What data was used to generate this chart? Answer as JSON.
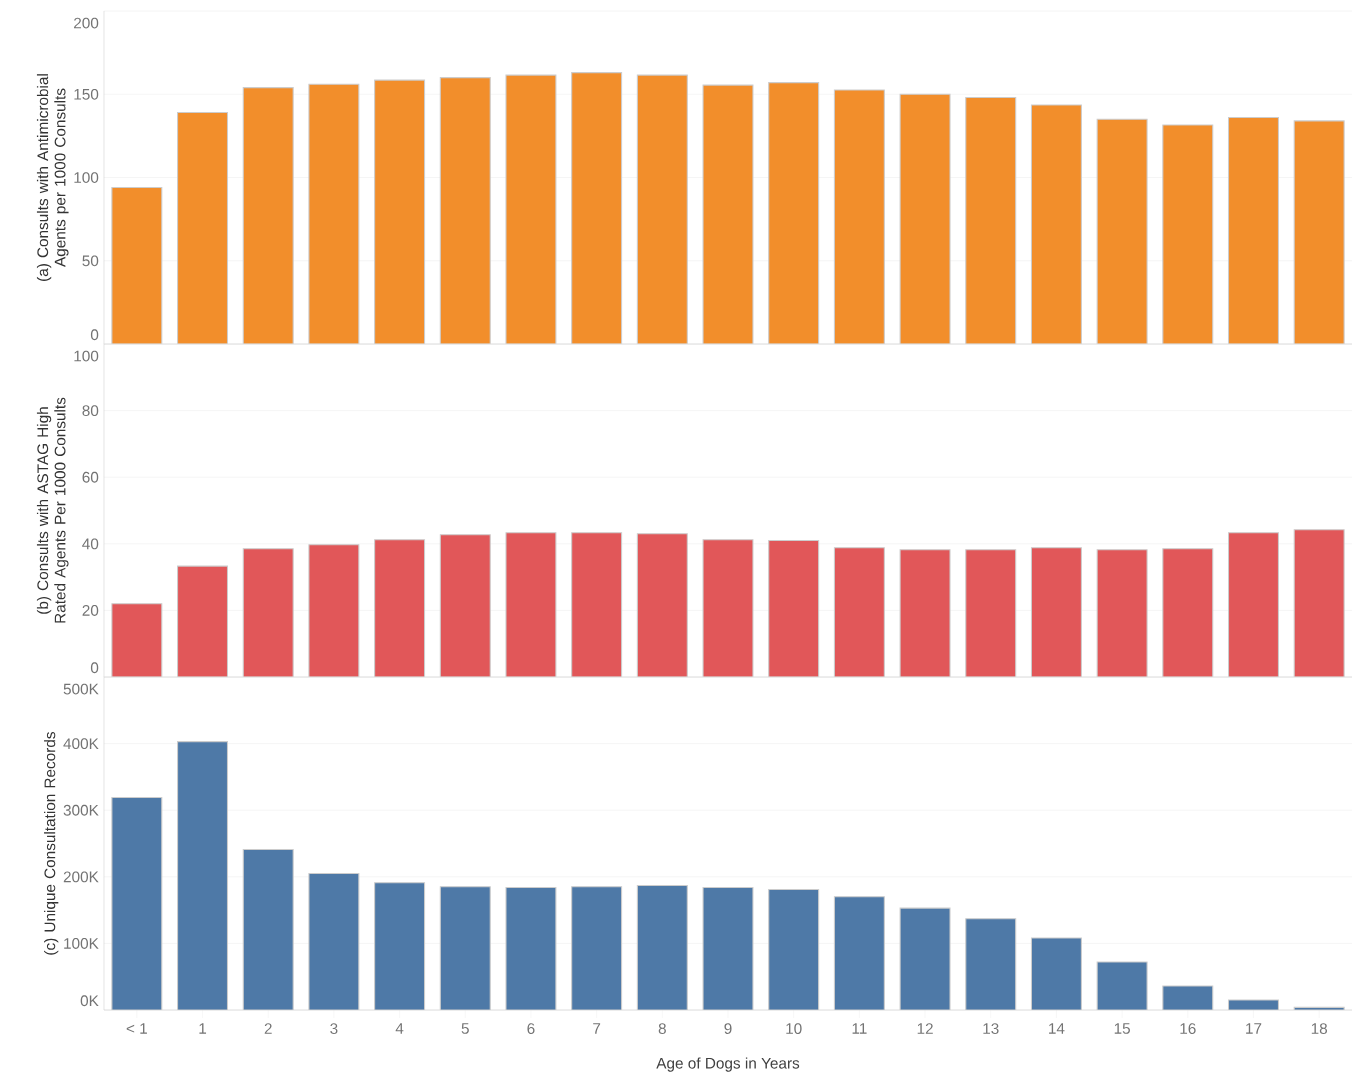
{
  "chart_data": [
    {
      "type": "bar",
      "ylabel": "(a) Consults with Antimicrobial Agents per 1000 Consults",
      "categories": [
        null,
        null,
        null,
        null,
        null,
        null,
        null,
        null,
        null,
        null,
        null,
        null,
        null,
        null,
        null,
        null,
        null,
        null,
        null
      ],
      "values": [
        94,
        139,
        154,
        156,
        158.5,
        160,
        161.5,
        163,
        161.5,
        155.5,
        157,
        152.5,
        150,
        148,
        143.5,
        135,
        131.5,
        136,
        134
      ],
      "color": "#f28e2b",
      "ylim": [
        0,
        200
      ],
      "yticks": [
        0,
        50,
        100,
        150,
        200
      ],
      "grid": "y",
      "tick_labels": "y"
    },
    {
      "type": "bar",
      "ylabel": "(b) Consults with ASTAG High Rated Agents Per 1000 Consults",
      "categories": [
        null,
        null,
        null,
        null,
        null,
        null,
        null,
        null,
        null,
        null,
        null,
        null,
        null,
        null,
        null,
        null,
        null,
        null,
        null
      ],
      "values": [
        22,
        33.3,
        38.5,
        39.7,
        41.2,
        42.7,
        43.3,
        43.3,
        43,
        41.2,
        41,
        38.8,
        38.2,
        38.2,
        38.8,
        38.2,
        38.5,
        43.3,
        44.2
      ],
      "color": "#e15759",
      "ylim": [
        0,
        100
      ],
      "yticks": [
        0,
        20,
        40,
        60,
        80,
        100
      ],
      "grid": "y",
      "tick_labels": "y"
    },
    {
      "type": "bar",
      "ylabel": "(c) Unique Consultation Records",
      "xlabel": "Age of Dogs in Years",
      "categories": [
        "< 1",
        "1",
        "2",
        "3",
        "4",
        "5",
        "6",
        "7",
        "8",
        "9",
        "10",
        "11",
        "12",
        "13",
        "14",
        "15",
        "16",
        "17",
        "18"
      ],
      "values": [
        319000,
        403000,
        241000,
        205000,
        191000,
        185000,
        184000,
        185000,
        187000,
        184000,
        181000,
        170000,
        153000,
        137000,
        108000,
        72000,
        36000,
        15000,
        4000
      ],
      "color": "#4e79a7",
      "ylim": [
        0,
        500000
      ],
      "yticks": [
        {
          "value": 0,
          "label": "0K"
        },
        {
          "value": 100000,
          "label": "100K"
        },
        {
          "value": 200000,
          "label": "200K"
        },
        {
          "value": 300000,
          "label": "300K"
        },
        {
          "value": 400000,
          "label": "400K"
        },
        {
          "value": 500000,
          "label": "500K"
        }
      ],
      "grid": "y"
    }
  ]
}
